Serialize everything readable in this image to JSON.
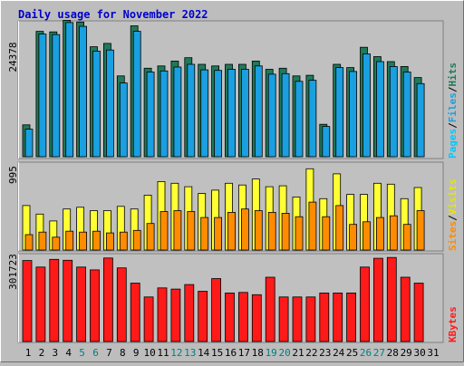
{
  "title": "Daily usage for November 2022",
  "colors": {
    "background": "#bdbdbd",
    "panel": "#c0c0c0",
    "title": "#0000cc",
    "hits": "#1f7a5a",
    "files": "#1a9fe0",
    "pages": "#00c8ff",
    "visits": "#ffff33",
    "sites": "#ff8c00",
    "kbytes": "#ff1a1a",
    "weekend": "#008080",
    "weekday": "#000000"
  },
  "chart_data": [
    {
      "type": "bar",
      "panel": "top",
      "categories": [
        "1",
        "2",
        "3",
        "4",
        "5",
        "6",
        "7",
        "8",
        "9",
        "10",
        "11",
        "12",
        "13",
        "14",
        "15",
        "16",
        "17",
        "18",
        "19",
        "20",
        "21",
        "22",
        "23",
        "24",
        "25",
        "26",
        "27",
        "28",
        "29",
        "30",
        "31"
      ],
      "series": [
        {
          "name": "Hits",
          "values": [
            5800,
            22800,
            22700,
            24800,
            24500,
            20000,
            20600,
            14700,
            23800,
            16100,
            16500,
            17400,
            18000,
            16800,
            16500,
            16800,
            16800,
            17400,
            15900,
            16100,
            14700,
            14800,
            5900,
            16800,
            16200,
            19900,
            18200,
            17300,
            16400,
            14400,
            0
          ]
        },
        {
          "name": "Files",
          "values": [
            5000,
            22300,
            22200,
            24400,
            23700,
            19200,
            19400,
            13400,
            22800,
            15400,
            15600,
            16300,
            16800,
            15800,
            15700,
            15900,
            15900,
            16500,
            15000,
            15100,
            13700,
            13900,
            5500,
            16200,
            15500,
            18700,
            17300,
            16400,
            15400,
            13300,
            0
          ]
        },
        {
          "name": "Pages",
          "values": [
            0,
            0,
            0,
            0,
            0,
            0,
            0,
            0,
            0,
            0,
            0,
            0,
            0,
            0,
            0,
            0,
            0,
            0,
            0,
            0,
            0,
            0,
            0,
            0,
            0,
            0,
            0,
            0,
            0,
            0,
            0
          ]
        }
      ],
      "y_axis_label": "24378",
      "y_max": 24378,
      "legend": [
        "Pages",
        "Files",
        "Hits"
      ]
    },
    {
      "type": "bar",
      "panel": "middle",
      "categories": [
        "1",
        "2",
        "3",
        "4",
        "5",
        "6",
        "7",
        "8",
        "9",
        "10",
        "11",
        "12",
        "13",
        "14",
        "15",
        "16",
        "17",
        "18",
        "19",
        "20",
        "21",
        "22",
        "23",
        "24",
        "25",
        "26",
        "27",
        "28",
        "29",
        "30",
        "31"
      ],
      "series": [
        {
          "name": "Visits",
          "values": [
            520,
            420,
            340,
            480,
            500,
            460,
            460,
            510,
            480,
            640,
            800,
            780,
            740,
            660,
            700,
            780,
            760,
            830,
            740,
            750,
            620,
            950,
            600,
            890,
            650,
            650,
            780,
            770,
            600,
            730,
            0
          ]
        },
        {
          "name": "Sites",
          "values": [
            180,
            210,
            150,
            220,
            210,
            220,
            200,
            210,
            230,
            310,
            450,
            460,
            450,
            380,
            380,
            440,
            480,
            460,
            440,
            430,
            390,
            560,
            390,
            520,
            300,
            330,
            380,
            400,
            300,
            460,
            0
          ]
        }
      ],
      "y_axis_label": "995",
      "y_max": 995,
      "legend": [
        "Sites",
        "Visits"
      ]
    },
    {
      "type": "bar",
      "panel": "bottom",
      "categories": [
        "1",
        "2",
        "3",
        "4",
        "5",
        "6",
        "7",
        "8",
        "9",
        "10",
        "11",
        "12",
        "13",
        "14",
        "15",
        "16",
        "17",
        "18",
        "19",
        "20",
        "21",
        "22",
        "23",
        "24",
        "25",
        "26",
        "27",
        "28",
        "29",
        "30",
        "31"
      ],
      "series": [
        {
          "name": "KBytes",
          "values": [
            287000,
            264000,
            291000,
            288000,
            264000,
            254000,
            296000,
            261000,
            207000,
            158000,
            190000,
            186000,
            202000,
            178000,
            223000,
            172000,
            174000,
            166000,
            228000,
            158000,
            158000,
            158000,
            172000,
            172000,
            172000,
            264000,
            295000,
            298000,
            228000,
            207000,
            0
          ]
        }
      ],
      "y_axis_label": "301723",
      "y_max": 301723,
      "legend": [
        "KBytes"
      ]
    }
  ],
  "x_labels": [
    "1",
    "2",
    "3",
    "4",
    "5",
    "6",
    "7",
    "8",
    "9",
    "10",
    "11",
    "12",
    "13",
    "14",
    "15",
    "16",
    "17",
    "18",
    "19",
    "20",
    "21",
    "22",
    "23",
    "24",
    "25",
    "26",
    "27",
    "28",
    "29",
    "30",
    "31"
  ],
  "weekend_days": [
    "5",
    "6",
    "12",
    "13",
    "19",
    "20",
    "26",
    "27"
  ]
}
